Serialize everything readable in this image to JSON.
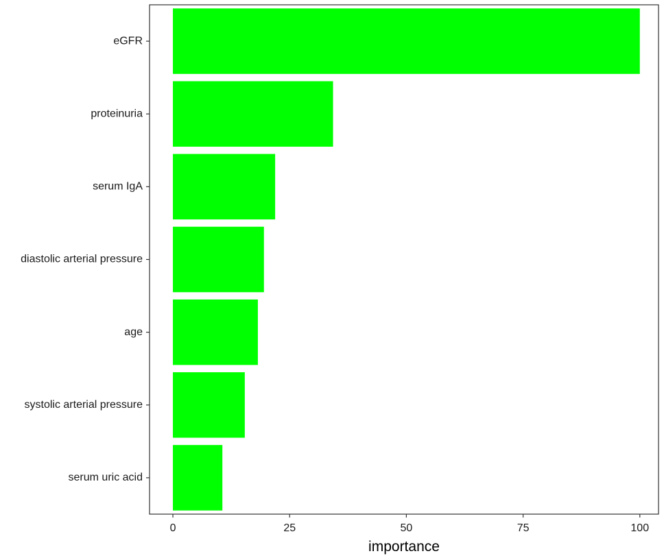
{
  "chart_data": {
    "type": "bar",
    "orientation": "horizontal",
    "categories": [
      "eGFR",
      "proteinuria",
      "serum IgA",
      "diastolic arterial pressure",
      "age",
      "systolic arterial pressure",
      "serum uric acid"
    ],
    "values": [
      100,
      34.3,
      21.9,
      19.5,
      18.2,
      15.4,
      10.6
    ],
    "xlabel": "importance",
    "ylabel": "",
    "xlim": [
      -5,
      104
    ],
    "xticks": [
      0,
      25,
      50,
      75,
      100
    ],
    "grid": false,
    "legend": "none",
    "bar_color": "#00ff00"
  }
}
